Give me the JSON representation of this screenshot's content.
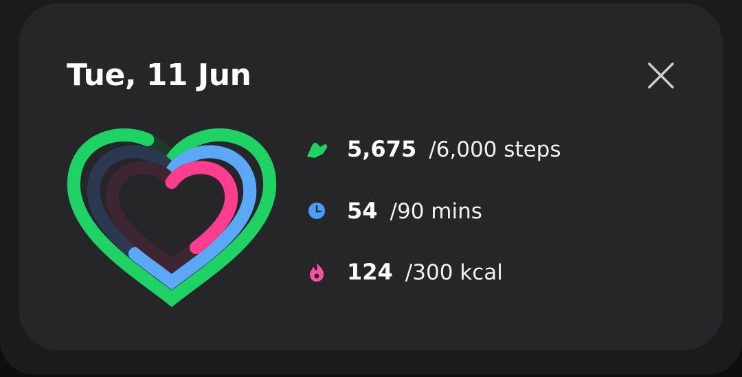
{
  "header": {
    "title": "Tue, 11 Jun"
  },
  "metrics": [
    {
      "value": "5,675",
      "goal": "/6,000 steps"
    },
    {
      "value": "54",
      "goal": "/90 mins"
    },
    {
      "value": "124",
      "goal": "/300 kcal"
    }
  ]
}
